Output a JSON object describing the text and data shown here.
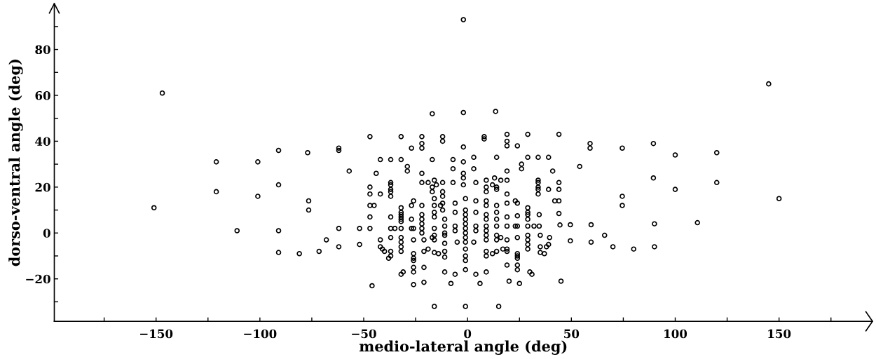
{
  "chart_data": {
    "type": "scatter",
    "xlabel": "medio-lateral angle (deg)",
    "ylabel": "dorso-ventral angle (deg)",
    "xlim": [
      -199,
      195
    ],
    "ylim": [
      -38.5,
      100
    ],
    "xticks": [
      {
        "value": -175,
        "label": null
      },
      {
        "value": -150,
        "label": "−150"
      },
      {
        "value": -125,
        "label": null
      },
      {
        "value": -100,
        "label": "−100"
      },
      {
        "value": -75,
        "label": null
      },
      {
        "value": -50,
        "label": "−50"
      },
      {
        "value": -25,
        "label": null
      },
      0,
      {
        "value": 25,
        "label": null
      },
      50,
      {
        "value": 75,
        "label": null
      },
      100,
      {
        "value": 125,
        "label": null
      },
      150,
      {
        "value": 175,
        "label": null
      }
    ],
    "yticks": [
      {
        "value": -30,
        "label": null
      },
      {
        "value": -20,
        "label": "−20"
      },
      {
        "value": -10,
        "label": null
      },
      0,
      {
        "value": 10,
        "label": null
      },
      20,
      {
        "value": 30,
        "label": null
      },
      40,
      {
        "value": 50,
        "label": null
      },
      60,
      {
        "value": 70,
        "label": null
      },
      80,
      {
        "value": 90,
        "label": null
      }
    ],
    "grid": false,
    "marker": "circle",
    "series": [
      {
        "color": "#000000",
        "x": [
          -147,
          -151,
          -121,
          -121,
          -101,
          -101,
          -111,
          -91,
          -91,
          -91,
          -91,
          -81,
          -77,
          -76.5,
          -76.5,
          -71.5,
          -68,
          -62,
          -62,
          -62,
          -62,
          -57,
          -52,
          -52,
          -47,
          -44,
          -47,
          -47,
          -47,
          -45,
          -47,
          -47,
          -42,
          -42,
          -42,
          -42,
          -41,
          -40,
          -38,
          -46,
          -37,
          -37,
          -37,
          -37,
          -37,
          -37,
          -37,
          -37,
          -35,
          -37,
          -37,
          -37,
          -32,
          -32,
          -32,
          -32,
          -32,
          -32,
          -32,
          -32,
          -32,
          -32,
          -32,
          -32,
          -32,
          -32,
          -31,
          -29,
          -29,
          -27,
          -27,
          -26,
          -27,
          -27,
          -26,
          -26,
          -26,
          -26,
          -26,
          -26,
          -26,
          -26,
          -22,
          -22,
          -22,
          -22,
          -22,
          -19,
          -22,
          -22,
          -22,
          -22,
          -22,
          -22,
          -21,
          -21,
          -19,
          -21,
          -21,
          -17,
          -17,
          -16,
          -15,
          -17,
          -17,
          -16,
          -16,
          -16,
          -16,
          -16,
          -16,
          -16,
          -17,
          -16,
          -14,
          -16,
          -12,
          -12,
          -12,
          -12,
          -12,
          -13,
          -12,
          -12,
          -11,
          -11,
          -11,
          -11,
          -11,
          -11,
          -11,
          -11,
          -8,
          -7,
          -7,
          -7,
          -6,
          -6,
          -6,
          -6,
          -5,
          -6,
          -2,
          -2,
          -2,
          -2,
          -2,
          -2,
          -2,
          -1,
          -1,
          -1,
          -1,
          -1,
          -1,
          -1,
          -1,
          -1,
          -1,
          -1,
          -1,
          -1,
          -1,
          3,
          3,
          4,
          4,
          4,
          4,
          4,
          3,
          4,
          6,
          8,
          8,
          9,
          9,
          9,
          9,
          9,
          9,
          9,
          9,
          9,
          9,
          9,
          9,
          9,
          9,
          13.5,
          14,
          13,
          16,
          12,
          14,
          14,
          14,
          14,
          14,
          14,
          14,
          16,
          14,
          14,
          12,
          15,
          19,
          19,
          19,
          19,
          19,
          19,
          19,
          19,
          19,
          19,
          17,
          19,
          19,
          19,
          20,
          24,
          23,
          24,
          24,
          23,
          24,
          24,
          24,
          24,
          24,
          24,
          24,
          25,
          26,
          26,
          29,
          29,
          29,
          29,
          29,
          29,
          29,
          29,
          29,
          29,
          29,
          30,
          31,
          32,
          34,
          34,
          34,
          34,
          34,
          34,
          34.5,
          34.5,
          35,
          35,
          35,
          37,
          38,
          39,
          39.5,
          39,
          39,
          41,
          42,
          44,
          44,
          44,
          44,
          44,
          44.5,
          45,
          49.5,
          49.5,
          54,
          59,
          59,
          59.5,
          59.5,
          66,
          70,
          74.5,
          74.5,
          74.5,
          80,
          89.5,
          89.5,
          90,
          90,
          100,
          100,
          110.7,
          120,
          120,
          145,
          150
        ],
        "values": [
          61,
          11,
          31,
          18,
          31,
          16,
          1,
          36,
          21,
          1,
          -8.5,
          -9,
          35,
          14,
          10,
          -8,
          -3,
          37,
          36,
          2,
          -6,
          27,
          2,
          -5,
          42,
          26,
          20,
          17,
          12,
          12,
          7,
          2,
          17,
          32,
          -3,
          -6,
          -7,
          -8,
          -11,
          -23,
          32,
          22,
          21,
          19,
          18,
          16,
          7,
          2,
          2,
          -2,
          -8,
          -10,
          42,
          32,
          11,
          9,
          8,
          7,
          6,
          5,
          2,
          -2,
          -4,
          -6,
          -8,
          -18,
          -17,
          29,
          27,
          37,
          12,
          14,
          6,
          2,
          2,
          -3,
          -9,
          -11,
          -12,
          -15,
          -17,
          -22.5,
          42,
          39,
          37,
          26,
          22,
          22,
          12,
          8,
          6,
          4,
          2,
          0,
          -3,
          -8,
          -7,
          -15,
          -21.5,
          52,
          32,
          23,
          21,
          20,
          18,
          15,
          12,
          9,
          7,
          2,
          -1,
          -3,
          -2,
          -8.5,
          -9,
          -32,
          42,
          40,
          22,
          18,
          16,
          12,
          13,
          10,
          6,
          3,
          0,
          -1,
          -4.5,
          -8,
          -10.5,
          -17,
          -22,
          32,
          28,
          22,
          13,
          9,
          3,
          1,
          -4,
          -18,
          93,
          52.5,
          37.5,
          31,
          26,
          24,
          21,
          15,
          10,
          8,
          6,
          4,
          2,
          0,
          -2,
          -4,
          -7,
          -10,
          -12,
          -16,
          -32,
          33,
          28,
          22,
          14,
          9,
          3,
          1,
          -4,
          -18,
          -22,
          42,
          41,
          23,
          20,
          18,
          14,
          12,
          8,
          6,
          3,
          1,
          -1,
          -3,
          -8,
          -10,
          -17,
          53,
          33,
          24,
          23,
          21,
          20,
          19,
          12,
          9,
          6,
          3,
          -1,
          -2,
          -3,
          -8,
          -9,
          -32,
          43,
          40,
          38,
          27,
          23,
          17,
          13,
          7,
          3,
          -3,
          -7,
          -7,
          -8,
          -14,
          -21,
          38,
          14,
          13,
          7.5,
          3,
          3,
          -2,
          -9,
          -10,
          -11,
          -14,
          -16,
          -22,
          30,
          28,
          43,
          33,
          11,
          9,
          8,
          6,
          3,
          -1,
          -3,
          -5,
          -7,
          -17,
          -18,
          3,
          33,
          23,
          22,
          20,
          19,
          17,
          8,
          3,
          -1,
          -6,
          -8.5,
          -9,
          -6,
          -5,
          -2,
          33,
          19,
          27,
          14,
          14,
          43,
          22,
          19,
          8.5,
          3.5,
          -21,
          3.6,
          -3.4,
          29,
          39,
          37,
          3.6,
          -4,
          -1,
          -6,
          37,
          16,
          12,
          -7,
          39,
          24,
          4,
          -6,
          34,
          19,
          4.5,
          35,
          22,
          65,
          15
        ]
      }
    ]
  }
}
